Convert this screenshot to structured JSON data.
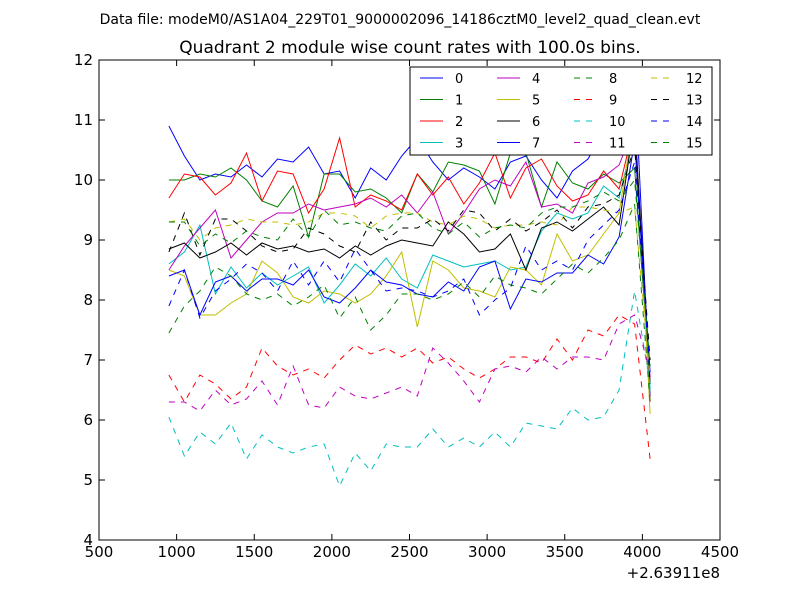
{
  "chart_data": {
    "type": "line",
    "suptitle": "Data file: modeM0/AS1A04_229T01_9000002096_14186cztM0_level2_quad_clean.evt",
    "title": "Quadrant 2 module wise count rates with 100.0s bins.",
    "xlim": [
      500,
      4500
    ],
    "ylim": [
      4,
      12
    ],
    "x_ticks": [
      500,
      1000,
      1500,
      2000,
      2500,
      3000,
      3500,
      4000,
      4500
    ],
    "y_ticks": [
      4,
      5,
      6,
      7,
      8,
      9,
      10,
      11,
      12
    ],
    "x_offset_label": "+2.63911e8",
    "x": [
      950,
      1050,
      1150,
      1250,
      1350,
      1450,
      1550,
      1650,
      1750,
      1850,
      1950,
      2050,
      2150,
      2250,
      2350,
      2450,
      2550,
      2650,
      2750,
      2850,
      2950,
      3050,
      3150,
      3250,
      3350,
      3450,
      3550,
      3650,
      3750,
      3850,
      3950,
      4050
    ],
    "series": [
      {
        "name": "0",
        "color": "#0000ff",
        "dash": "solid",
        "values": [
          10.9,
          10.4,
          10.0,
          10.1,
          10.05,
          10.25,
          10.05,
          10.35,
          10.3,
          10.55,
          10.1,
          10.15,
          9.7,
          10.2,
          10.0,
          10.4,
          10.7,
          10.3,
          10.0,
          10.2,
          10.05,
          9.85,
          10.3,
          10.4,
          10.0,
          9.7,
          10.15,
          10.35,
          10.8,
          11.1,
          11.8,
          6.4
        ]
      },
      {
        "name": "1",
        "color": "#008000",
        "dash": "solid",
        "values": [
          10.0,
          10.0,
          10.1,
          10.05,
          10.2,
          10.0,
          9.65,
          9.55,
          9.9,
          9.05,
          10.1,
          10.1,
          9.8,
          9.85,
          9.7,
          9.45,
          10.1,
          9.8,
          10.3,
          10.25,
          10.15,
          9.6,
          10.45,
          10.45,
          9.55,
          10.3,
          9.95,
          9.85,
          10.1,
          9.95,
          10.2,
          6.6
        ]
      },
      {
        "name": "2",
        "color": "#ff0000",
        "dash": "solid",
        "values": [
          9.7,
          10.1,
          10.05,
          9.75,
          9.95,
          10.45,
          9.65,
          10.15,
          10.1,
          9.45,
          9.85,
          10.7,
          9.55,
          9.75,
          9.65,
          9.5,
          10.1,
          9.75,
          10.05,
          9.6,
          9.95,
          10.45,
          9.7,
          10.2,
          10.35,
          9.9,
          9.65,
          9.75,
          10.15,
          9.85,
          10.95,
          6.3
        ]
      },
      {
        "name": "3",
        "color": "#00bfbf",
        "dash": "solid",
        "values": [
          8.6,
          8.8,
          9.25,
          8.1,
          8.55,
          8.2,
          8.45,
          8.25,
          8.4,
          8.55,
          7.95,
          8.25,
          8.6,
          8.4,
          8.7,
          8.35,
          8.2,
          8.75,
          8.65,
          8.55,
          8.6,
          8.65,
          8.5,
          8.55,
          9.15,
          9.45,
          9.35,
          9.45,
          9.9,
          9.7,
          10.8,
          6.5
        ]
      },
      {
        "name": "4",
        "color": "#bf00bf",
        "dash": "solid",
        "values": [
          8.5,
          8.9,
          9.2,
          9.5,
          8.7,
          9.0,
          9.3,
          9.45,
          9.45,
          9.6,
          9.5,
          9.55,
          9.6,
          9.7,
          9.55,
          9.75,
          9.45,
          9.8,
          9.1,
          9.45,
          9.85,
          10.0,
          9.9,
          10.3,
          9.55,
          9.6,
          9.45,
          9.95,
          10.05,
          10.25,
          10.9,
          6.7
        ]
      },
      {
        "name": "5",
        "color": "#bfbf00",
        "dash": "solid",
        "values": [
          8.5,
          8.4,
          7.75,
          7.75,
          7.95,
          8.1,
          8.65,
          8.45,
          8.05,
          7.95,
          8.15,
          8.1,
          7.95,
          8.1,
          8.4,
          8.8,
          7.55,
          8.65,
          8.5,
          8.2,
          8.15,
          8.05,
          8.55,
          8.5,
          8.25,
          9.1,
          8.65,
          8.75,
          9.1,
          9.45,
          11.1,
          6.1
        ]
      },
      {
        "name": "6",
        "color": "#000000",
        "dash": "solid",
        "values": [
          8.85,
          8.95,
          8.7,
          8.8,
          8.95,
          8.75,
          8.95,
          8.85,
          8.9,
          8.8,
          8.85,
          8.7,
          8.9,
          8.75,
          8.9,
          9.0,
          8.95,
          8.9,
          9.3,
          9.1,
          8.8,
          8.85,
          9.1,
          8.5,
          9.2,
          9.3,
          9.15,
          9.35,
          9.55,
          9.25,
          11.0,
          6.6
        ]
      },
      {
        "name": "7",
        "color": "#0000ff",
        "dash": "solid",
        "values": [
          8.4,
          8.5,
          7.75,
          8.3,
          8.4,
          8.15,
          8.35,
          8.35,
          8.25,
          8.5,
          8.05,
          7.95,
          8.2,
          8.5,
          8.3,
          8.25,
          8.1,
          8.05,
          8.3,
          8.15,
          8.55,
          8.65,
          7.85,
          8.35,
          8.3,
          8.45,
          8.45,
          8.75,
          8.6,
          9.05,
          10.65,
          6.8
        ]
      },
      {
        "name": "8",
        "color": "#008000",
        "dash": "dashed",
        "values": [
          7.45,
          7.9,
          8.15,
          8.55,
          8.4,
          8.1,
          8.0,
          8.1,
          7.9,
          8.05,
          8.25,
          7.7,
          8.05,
          7.5,
          7.75,
          8.1,
          8.1,
          8.0,
          8.1,
          8.3,
          8.05,
          8.4,
          8.25,
          8.2,
          8.1,
          8.35,
          8.6,
          8.45,
          8.7,
          9.0,
          9.6,
          6.3
        ]
      },
      {
        "name": "9",
        "color": "#ff0000",
        "dash": "dashed",
        "values": [
          6.75,
          6.3,
          6.75,
          6.6,
          6.35,
          6.55,
          7.2,
          6.9,
          6.75,
          6.85,
          6.7,
          7.0,
          7.25,
          7.1,
          7.2,
          7.05,
          7.2,
          6.95,
          7.05,
          6.85,
          6.7,
          6.85,
          7.05,
          7.05,
          6.95,
          7.35,
          7.0,
          7.5,
          7.4,
          7.75,
          7.6,
          5.35
        ]
      },
      {
        "name": "10",
        "color": "#00bfbf",
        "dash": "dashed",
        "values": [
          6.05,
          5.4,
          5.8,
          5.6,
          5.95,
          5.35,
          5.75,
          5.55,
          5.45,
          5.55,
          5.6,
          4.9,
          5.45,
          5.15,
          5.6,
          5.55,
          5.55,
          5.85,
          5.55,
          5.7,
          5.55,
          5.8,
          5.55,
          5.95,
          5.9,
          5.85,
          6.2,
          6.0,
          6.05,
          6.5,
          8.15,
          6.6
        ]
      },
      {
        "name": "11",
        "color": "#bf00bf",
        "dash": "dashed",
        "values": [
          6.3,
          6.3,
          6.15,
          6.5,
          6.25,
          6.35,
          6.65,
          6.25,
          6.9,
          6.25,
          6.2,
          6.55,
          6.4,
          6.35,
          6.45,
          6.55,
          6.4,
          7.2,
          6.95,
          6.65,
          6.3,
          6.85,
          6.9,
          6.8,
          7.05,
          6.85,
          7.05,
          7.05,
          7.0,
          7.6,
          7.75,
          6.8
        ]
      },
      {
        "name": "12",
        "color": "#bfbf00",
        "dash": "dashed",
        "values": [
          9.3,
          9.35,
          9.0,
          9.2,
          9.25,
          9.35,
          9.3,
          9.3,
          9.25,
          9.3,
          9.45,
          9.45,
          9.4,
          9.2,
          9.4,
          9.45,
          9.45,
          9.3,
          9.25,
          9.4,
          9.35,
          9.2,
          9.25,
          9.25,
          9.3,
          9.25,
          9.55,
          9.55,
          9.5,
          9.45,
          9.55,
          6.7
        ]
      },
      {
        "name": "13",
        "color": "#000000",
        "dash": "dashed",
        "values": [
          8.8,
          9.45,
          8.75,
          9.35,
          9.35,
          9.15,
          8.9,
          8.8,
          8.85,
          9.2,
          9.1,
          8.9,
          8.8,
          9.3,
          9.0,
          9.2,
          9.2,
          9.35,
          9.15,
          9.5,
          9.45,
          9.15,
          9.35,
          9.15,
          9.3,
          9.5,
          9.2,
          9.55,
          9.6,
          9.75,
          10.55,
          7.0
        ]
      },
      {
        "name": "14",
        "color": "#0000ff",
        "dash": "dashed",
        "values": [
          7.9,
          8.5,
          7.7,
          8.15,
          8.35,
          8.6,
          8.45,
          8.15,
          8.65,
          8.25,
          8.65,
          8.3,
          8.85,
          8.5,
          8.15,
          8.2,
          8.15,
          8.05,
          8.15,
          8.35,
          7.75,
          8.0,
          8.2,
          8.9,
          8.5,
          8.65,
          8.5,
          9.0,
          9.25,
          9.5,
          10.3,
          6.8
        ]
      },
      {
        "name": "15",
        "color": "#008000",
        "dash": "dashed",
        "values": [
          9.3,
          9.3,
          8.9,
          9.1,
          8.95,
          9.15,
          9.05,
          9.0,
          9.35,
          9.05,
          9.5,
          9.25,
          9.3,
          9.2,
          9.15,
          9.4,
          9.45,
          9.2,
          9.1,
          9.3,
          9.05,
          9.2,
          9.25,
          9.2,
          9.45,
          9.55,
          9.55,
          9.65,
          9.8,
          9.65,
          10.0,
          6.9
        ]
      }
    ]
  }
}
